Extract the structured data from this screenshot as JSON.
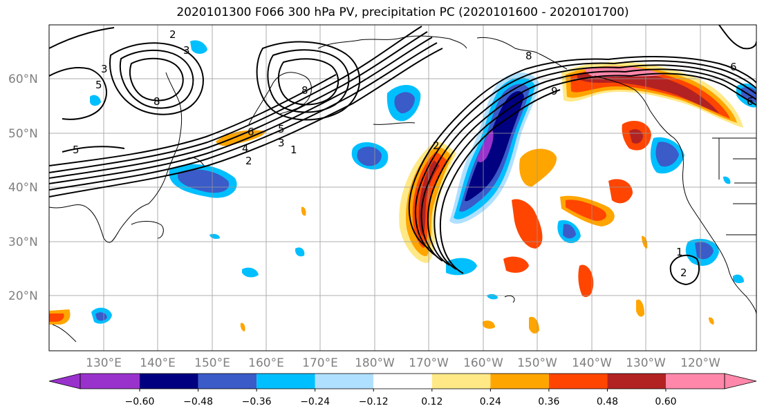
{
  "title": "2020101300 F066 300 hPa PV, precipitation PC (2020101600 - 2020101700)",
  "map": {
    "lat_labels": [
      "60°N",
      "50°N",
      "40°N",
      "30°N",
      "20°N"
    ],
    "lon_labels": [
      "130°E",
      "140°E",
      "150°E",
      "160°E",
      "170°E",
      "180°W",
      "170°W",
      "160°W",
      "150°W",
      "140°W",
      "130°W",
      "120°W"
    ],
    "contour_labels": [
      "2",
      "3",
      "5",
      "6",
      "5",
      "4",
      "3",
      "2",
      "1",
      "8",
      "8",
      "8",
      "9",
      "2",
      "6",
      "6",
      "5",
      "1",
      "2",
      "3"
    ]
  },
  "colorbar": {
    "colors": [
      "#9932CC",
      "#000080",
      "#3A5BC8",
      "#00BFFF",
      "#B0E0FF",
      "#FFFFFF",
      "#FFE987",
      "#FFA500",
      "#FF4500",
      "#B22222",
      "#FF88AA"
    ],
    "labels": [
      "−0.60",
      "−0.48",
      "−0.36",
      "−0.24",
      "−0.12",
      "0.12",
      "0.24",
      "0.36",
      "0.48",
      "0.60"
    ]
  }
}
